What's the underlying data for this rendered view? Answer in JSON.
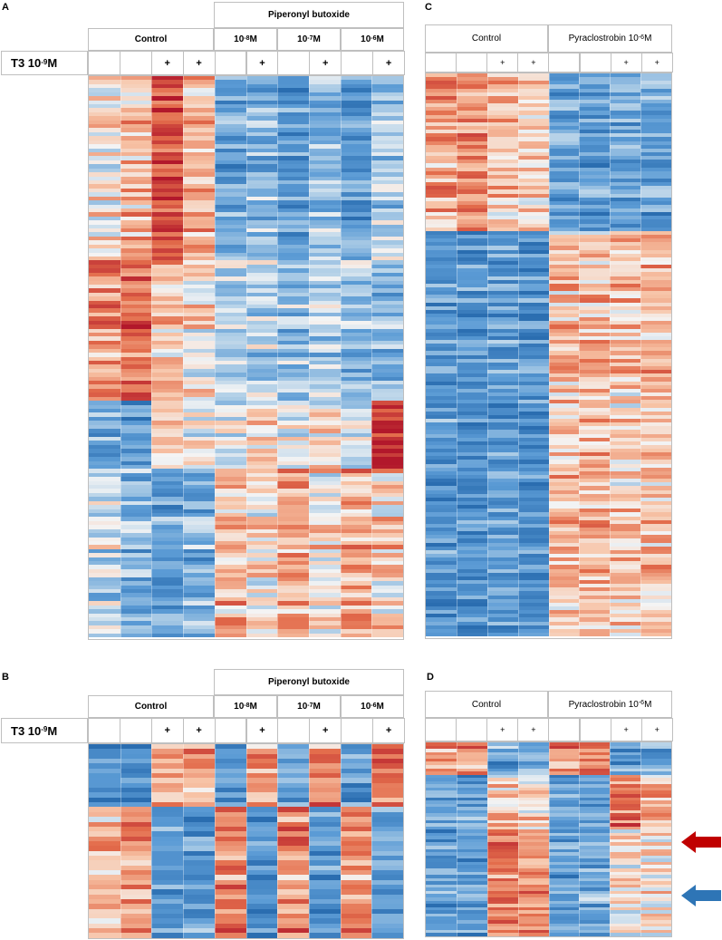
{
  "panels": {
    "a": {
      "label": "A",
      "group_control": "Control",
      "group_treat": "Piperonyl butoxide",
      "conc": [
        {
          "base": "10",
          "exp": "-8",
          "unit": "M"
        },
        {
          "base": "10",
          "exp": "-7",
          "unit": "M"
        },
        {
          "base": "10",
          "exp": "-6",
          "unit": "M"
        }
      ],
      "t3": {
        "base": "T3 10",
        "exp": "-9",
        "unit": "M"
      },
      "plus": [
        "+",
        "+",
        "+",
        "+",
        "+"
      ]
    },
    "b": {
      "label": "B",
      "group_control": "Control",
      "group_treat": "Piperonyl butoxide",
      "conc": [
        {
          "base": "10",
          "exp": "-8",
          "unit": "M"
        },
        {
          "base": "10",
          "exp": "-7",
          "unit": "M"
        },
        {
          "base": "10",
          "exp": "-6",
          "unit": "M"
        }
      ],
      "t3": {
        "base": "T3 10",
        "exp": "-9",
        "unit": "M"
      },
      "plus": [
        "+",
        "+",
        "+",
        "+",
        "+"
      ]
    },
    "c": {
      "label": "C",
      "group_control": "Control",
      "group_treat": {
        "base": "Pyraclostrobin 10",
        "exp": "-6",
        "unit": "M"
      },
      "plus": [
        "+",
        "+",
        "+",
        "+"
      ]
    },
    "d": {
      "label": "D",
      "group_control": "Control",
      "group_treat": {
        "base": "Pyraclostrobin 10",
        "exp": "-6",
        "unit": "M"
      },
      "plus": [
        "+",
        "+",
        "+",
        "+"
      ]
    }
  },
  "arrows": {
    "up_color": "#c00000",
    "down_color": "#2e75b6",
    "up_name": "red-arrow",
    "down_name": "blue-arrow"
  },
  "palette": {
    "red_dark": "#b2182b",
    "red": "#e36c4b",
    "light_red": "#f7c3a6",
    "white": "#f4f4f4",
    "light_blue": "#b6d2e8",
    "blue": "#5b9bd5",
    "blue_dark": "#2a6db0"
  },
  "heatmaps": {
    "a": {
      "cols": 10,
      "rows": 140,
      "seed": 11,
      "blocks": [
        {
          "from": 0,
          "to": 0.33,
          "profile": [
            0.1,
            0.6,
            1.6,
            0.6,
            -1.2,
            -0.9,
            -1.4,
            -0.8,
            -1.3,
            -0.6
          ]
        },
        {
          "from": 0.33,
          "to": 0.58,
          "profile": [
            1.0,
            1.3,
            0.5,
            0.2,
            -0.6,
            -0.5,
            -0.8,
            -0.6,
            -0.7,
            -1.0
          ]
        },
        {
          "from": 0.58,
          "to": 0.7,
          "profile": [
            -1.2,
            -1.4,
            0.2,
            0.0,
            -0.2,
            0.1,
            -0.3,
            0.2,
            -0.5,
            1.9
          ]
        },
        {
          "from": 0.7,
          "to": 1.0,
          "profile": [
            -0.4,
            -1.0,
            -1.3,
            -1.0,
            0.6,
            0.2,
            0.8,
            0.1,
            0.7,
            0.3
          ]
        }
      ]
    },
    "b": {
      "cols": 10,
      "rows": 40,
      "seed": 23,
      "blocks": [
        {
          "from": 0,
          "to": 0.32,
          "profile": [
            -1.6,
            -1.6,
            0.6,
            0.9,
            -1.4,
            0.8,
            -1.2,
            1.0,
            -1.5,
            1.2
          ]
        },
        {
          "from": 0.32,
          "to": 1.0,
          "profile": [
            0.4,
            0.8,
            -1.4,
            -1.4,
            1.0,
            -1.6,
            1.0,
            -1.4,
            1.0,
            -1.2
          ]
        }
      ]
    },
    "c": {
      "cols": 8,
      "rows": 150,
      "seed": 37,
      "blocks": [
        {
          "from": 0,
          "to": 0.28,
          "profile": [
            0.7,
            0.8,
            0.4,
            0.3,
            -1.4,
            -1.5,
            -1.3,
            -1.4
          ]
        },
        {
          "from": 0.28,
          "to": 1.0,
          "profile": [
            -1.4,
            -1.5,
            -1.3,
            -1.5,
            0.5,
            0.6,
            0.4,
            0.5
          ]
        }
      ]
    },
    "d": {
      "cols": 8,
      "rows": 60,
      "seed": 41,
      "blocks": [
        {
          "from": 0,
          "to": 0.17,
          "profile": [
            0.9,
            0.9,
            -1.2,
            -1.2,
            0.9,
            0.9,
            -1.2,
            -1.2
          ]
        },
        {
          "from": 0.17,
          "to": 0.45,
          "profile": [
            -1.3,
            -1.3,
            0.3,
            0.3,
            -1.3,
            -1.3,
            1.2,
            0.8
          ]
        },
        {
          "from": 0.45,
          "to": 1.0,
          "profile": [
            -1.3,
            -1.3,
            1.1,
            1.0,
            -1.3,
            -1.2,
            0.2,
            0.2
          ]
        }
      ]
    }
  }
}
